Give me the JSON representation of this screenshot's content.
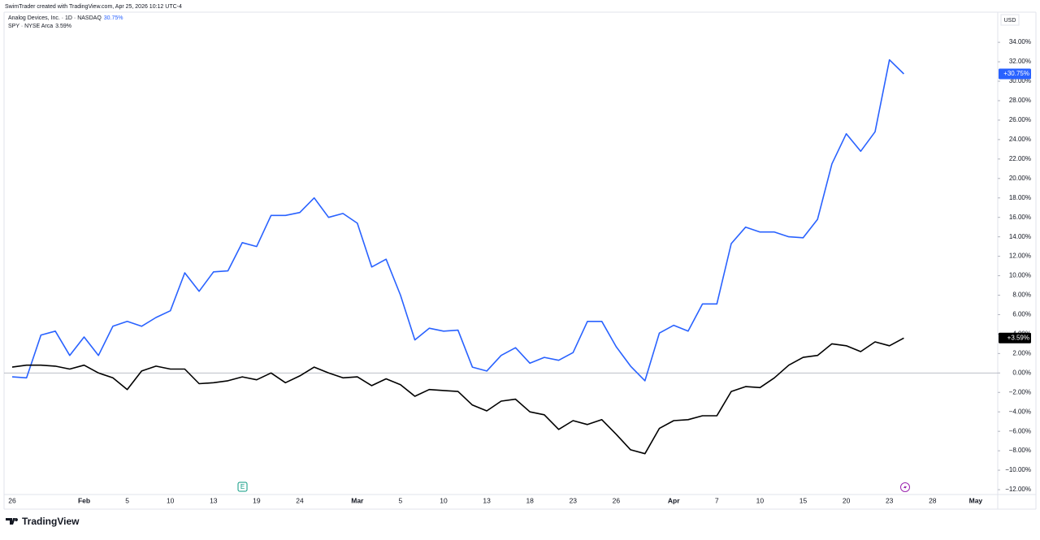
{
  "header": {
    "credit": "SwimTrader created with TradingView.com, Apr 25, 2026 10:12 UTC-4",
    "currency": "USD",
    "logo": "TradingView"
  },
  "chart_data": {
    "type": "line",
    "earnings_marker": "E",
    "categories": [
      "26",
      null,
      null,
      null,
      null,
      "Feb",
      null,
      null,
      "5",
      null,
      null,
      "10",
      null,
      null,
      "13",
      null,
      null,
      "19",
      null,
      null,
      "24",
      null,
      null,
      null,
      "Mar",
      null,
      null,
      "5",
      null,
      null,
      "10",
      null,
      null,
      "13",
      null,
      null,
      "18",
      null,
      null,
      "23",
      null,
      null,
      "26",
      null,
      null,
      null,
      "Apr",
      null,
      null,
      "7",
      null,
      null,
      "10",
      null,
      null,
      "15",
      null,
      null,
      "20",
      null,
      null,
      "23",
      null,
      null,
      "28",
      null,
      null,
      "May"
    ],
    "series": [
      {
        "name": "Analog Devices, Inc. · 1D · NASDAQ",
        "legend_value": "30.75%",
        "badge_label": "+30.75%",
        "color": "#2962ff",
        "values": [
          -0.4,
          -0.5,
          3.9,
          4.3,
          1.8,
          3.7,
          1.8,
          4.8,
          5.3,
          4.8,
          5.7,
          6.4,
          10.3,
          8.4,
          10.4,
          10.5,
          13.4,
          13.0,
          16.2,
          16.2,
          16.5,
          18.0,
          16.0,
          16.4,
          15.4,
          10.9,
          11.7,
          8.0,
          3.4,
          4.6,
          4.3,
          4.4,
          0.6,
          0.2,
          1.8,
          2.6,
          1.0,
          1.6,
          1.3,
          2.1,
          5.3,
          5.3,
          2.7,
          0.7,
          -0.8,
          4.1,
          4.9,
          4.3,
          7.1,
          7.1,
          13.3,
          15.0,
          14.5,
          14.5,
          14.0,
          13.9,
          15.8,
          21.5,
          24.6,
          22.8,
          24.8,
          32.2,
          30.75,
          null,
          null,
          null,
          null,
          null
        ]
      },
      {
        "name": "SPY · NYSE Arca",
        "legend_value": "3.59%",
        "badge_label": "+3.59%",
        "color": "#000000",
        "values": [
          0.6,
          0.8,
          0.8,
          0.7,
          0.4,
          0.8,
          0.0,
          -0.5,
          -1.7,
          0.2,
          0.7,
          0.4,
          0.4,
          -1.1,
          -1.0,
          -0.8,
          -0.4,
          -0.7,
          0.0,
          -1.0,
          -0.3,
          0.6,
          0.0,
          -0.5,
          -0.4,
          -1.3,
          -0.6,
          -1.2,
          -2.4,
          -1.7,
          -1.8,
          -1.9,
          -3.3,
          -3.9,
          -2.9,
          -2.7,
          -4.0,
          -4.3,
          -5.8,
          -4.9,
          -5.3,
          -4.8,
          -6.3,
          -7.9,
          -8.3,
          -5.7,
          -4.9,
          -4.8,
          -4.4,
          -4.4,
          -1.9,
          -1.4,
          -1.5,
          -0.5,
          0.8,
          1.6,
          1.8,
          3.0,
          2.8,
          2.2,
          3.2,
          2.8,
          3.59,
          null,
          null,
          null,
          null,
          null
        ]
      }
    ],
    "ylim": [
      -12.5,
      37.1
    ],
    "yticks": [
      {
        "value": -12,
        "label": "−12.00%"
      },
      {
        "value": -10,
        "label": "−10.00%"
      },
      {
        "value": -8,
        "label": "−8.00%"
      },
      {
        "value": -6,
        "label": "−6.00%"
      },
      {
        "value": -4,
        "label": "−4.00%"
      },
      {
        "value": -2,
        "label": "−2.00%"
      },
      {
        "value": 0,
        "label": "0.00%"
      },
      {
        "value": 2,
        "label": "2.00%"
      },
      {
        "value": 4,
        "label": "4.00%"
      },
      {
        "value": 6,
        "label": "6.00%"
      },
      {
        "value": 8,
        "label": "8.00%"
      },
      {
        "value": 10,
        "label": "10.00%"
      },
      {
        "value": 12,
        "label": "12.00%"
      },
      {
        "value": 14,
        "label": "14.00%"
      },
      {
        "value": 16,
        "label": "16.00%"
      },
      {
        "value": 18,
        "label": "18.00%"
      },
      {
        "value": 20,
        "label": "20.00%"
      },
      {
        "value": 22,
        "label": "22.00%"
      },
      {
        "value": 24,
        "label": "24.00%"
      },
      {
        "value": 26,
        "label": "26.00%"
      },
      {
        "value": 28,
        "label": "28.00%"
      },
      {
        "value": 30,
        "label": "30.00%"
      },
      {
        "value": 32,
        "label": "32.00%"
      },
      {
        "value": 34,
        "label": "34.00%"
      }
    ],
    "grid": false
  }
}
